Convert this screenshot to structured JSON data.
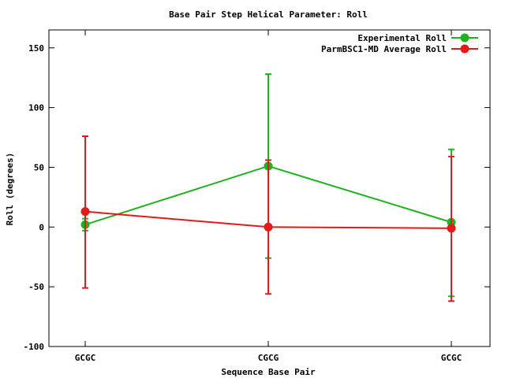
{
  "chart_data": {
    "type": "line",
    "title": "Base Pair Step Helical Parameter: Roll",
    "xlabel": "Sequence Base Pair",
    "ylabel": "Roll (degrees)",
    "categories": [
      "GCGC",
      "CGCG",
      "GCGC"
    ],
    "ylim": [
      -100,
      165
    ],
    "yticks": [
      -100,
      -50,
      0,
      50,
      100,
      150
    ],
    "grid": false,
    "legend_position": "top-right",
    "series": [
      {
        "name": "Experimental Roll",
        "color": "#1fb21f",
        "values": [
          2,
          51,
          4
        ],
        "err_low": [
          -3,
          -26,
          -58
        ],
        "err_high": [
          7,
          128,
          65
        ]
      },
      {
        "name": "ParmBSC1-MD Average Roll",
        "color": "#e41a1a",
        "values": [
          13,
          0,
          -1
        ],
        "err_low": [
          -51,
          -56,
          -62
        ],
        "err_high": [
          76,
          56,
          59
        ]
      }
    ]
  }
}
